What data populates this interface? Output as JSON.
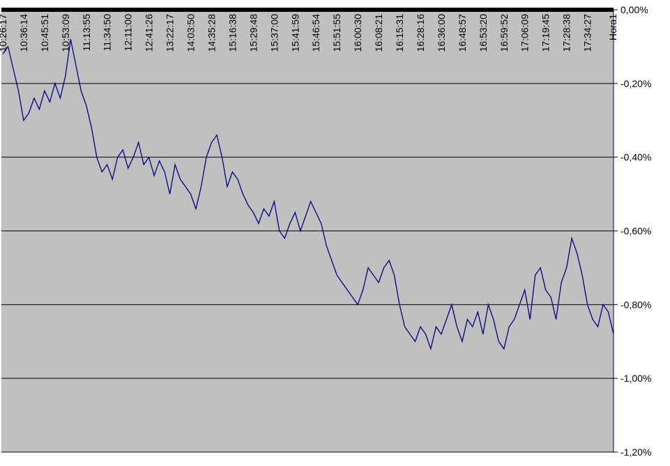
{
  "chart_data": {
    "type": "line",
    "x_label": "Hora1",
    "categories": [
      "10:26:17",
      null,
      null,
      null,
      "10:36:14",
      null,
      null,
      null,
      "10:45:51",
      null,
      null,
      null,
      "10:53:09",
      null,
      null,
      null,
      "11:13:55",
      null,
      null,
      null,
      "11:34:50",
      null,
      null,
      null,
      "12:11:00",
      null,
      null,
      null,
      "12:41:26",
      null,
      null,
      null,
      "13:22:17",
      null,
      null,
      null,
      "14:03:50",
      null,
      null,
      null,
      "14:35:28",
      null,
      null,
      null,
      "15:16:38",
      null,
      null,
      null,
      "15:29:48",
      null,
      null,
      null,
      "15:37:00",
      null,
      null,
      null,
      "15:41:59",
      null,
      null,
      null,
      "15:46:54",
      null,
      null,
      null,
      "15:51:55",
      null,
      null,
      null,
      "16:00:30",
      null,
      null,
      null,
      "16:08:21",
      null,
      null,
      null,
      "16:15:31",
      null,
      null,
      null,
      "16:28:16",
      null,
      null,
      null,
      "16:36:00",
      null,
      null,
      null,
      "16:48:57",
      null,
      null,
      null,
      "16:53:20",
      null,
      null,
      null,
      "16:59:52",
      null,
      null,
      null,
      "17:06:09",
      null,
      null,
      null,
      "17:19:45",
      null,
      null,
      null,
      "17:28:38",
      null,
      null,
      null,
      "17:34:27",
      null,
      null,
      null,
      null,
      null
    ],
    "series": [
      {
        "color": "#000080",
        "values": [
          -0.12,
          -0.1,
          -0.16,
          -0.22,
          -0.3,
          -0.28,
          -0.24,
          -0.27,
          -0.22,
          -0.25,
          -0.2,
          -0.24,
          -0.18,
          -0.08,
          -0.15,
          -0.22,
          -0.26,
          -0.32,
          -0.4,
          -0.44,
          -0.42,
          -0.46,
          -0.4,
          -0.38,
          -0.43,
          -0.4,
          -0.36,
          -0.42,
          -0.4,
          -0.45,
          -0.41,
          -0.44,
          -0.5,
          -0.42,
          -0.46,
          -0.48,
          -0.5,
          -0.54,
          -0.48,
          -0.4,
          -0.36,
          -0.34,
          -0.4,
          -0.48,
          -0.44,
          -0.46,
          -0.5,
          -0.53,
          -0.55,
          -0.58,
          -0.54,
          -0.56,
          -0.52,
          -0.6,
          -0.62,
          -0.58,
          -0.55,
          -0.6,
          -0.56,
          -0.52,
          -0.55,
          -0.58,
          -0.64,
          -0.68,
          -0.72,
          -0.74,
          -0.76,
          -0.78,
          -0.8,
          -0.76,
          -0.7,
          -0.72,
          -0.74,
          -0.7,
          -0.68,
          -0.72,
          -0.8,
          -0.86,
          -0.88,
          -0.9,
          -0.86,
          -0.88,
          -0.92,
          -0.86,
          -0.88,
          -0.84,
          -0.8,
          -0.86,
          -0.9,
          -0.84,
          -0.86,
          -0.82,
          -0.88,
          -0.8,
          -0.84,
          -0.9,
          -0.92,
          -0.86,
          -0.84,
          -0.8,
          -0.76,
          -0.84,
          -0.72,
          -0.7,
          -0.76,
          -0.78,
          -0.84,
          -0.74,
          -0.7,
          -0.62,
          -0.66,
          -0.72,
          -0.8,
          -0.84,
          -0.86,
          -0.8,
          -0.82,
          -0.88
        ]
      }
    ],
    "ylim": [
      -1.2,
      0
    ],
    "yticks": [
      {
        "value": 0,
        "label": "0,00%"
      },
      {
        "value": -0.2,
        "label": "-0,20%"
      },
      {
        "value": -0.4,
        "label": "-0,40%"
      },
      {
        "value": -0.6,
        "label": "-0,60%"
      },
      {
        "value": -0.8,
        "label": "-0,80%"
      },
      {
        "value": -1.0,
        "label": "-1,00%"
      },
      {
        "value": -1.2,
        "label": "-1,20%"
      }
    ],
    "grid": true,
    "background": "#c0c0c0"
  }
}
